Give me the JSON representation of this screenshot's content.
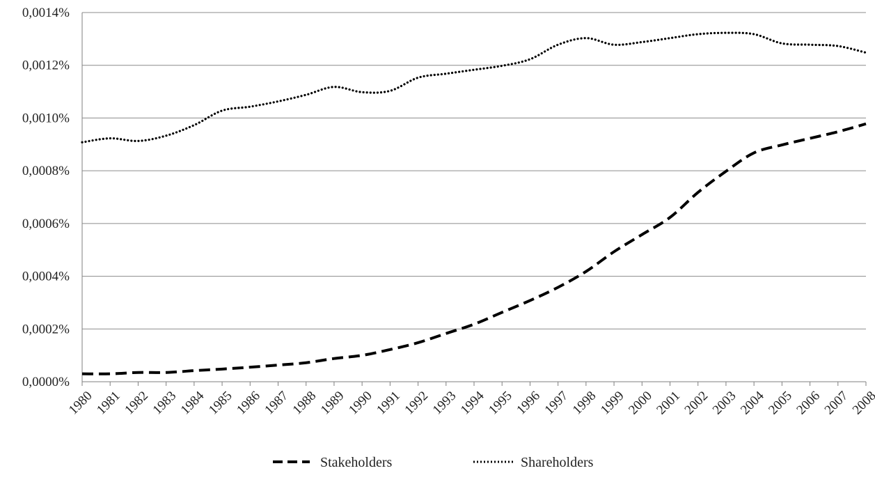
{
  "chart_data": {
    "type": "line",
    "title": "",
    "xlabel": "",
    "ylabel": "",
    "ylim": [
      0,
      0.0014
    ],
    "yticks": [
      0,
      0.0002,
      0.0004,
      0.0006,
      0.0008,
      0.001,
      0.0012,
      0.0014
    ],
    "ytick_labels": [
      "0,0000%",
      "0,0002%",
      "0,0004%",
      "0,0006%",
      "0,0008%",
      "0,0010%",
      "0,0012%",
      "0,0014%"
    ],
    "grid": "horizontal",
    "legend": "bottom-center",
    "categories": [
      "1980",
      "1981",
      "1982",
      "1983",
      "1984",
      "1985",
      "1986",
      "1987",
      "1988",
      "1989",
      "1990",
      "1991",
      "1992",
      "1993",
      "1994",
      "1995",
      "1996",
      "1997",
      "1998",
      "1999",
      "2000",
      "2001",
      "2002",
      "2003",
      "2004",
      "2005",
      "2006",
      "2007",
      "2008"
    ],
    "series": [
      {
        "name": "Stakeholders",
        "style": "dashed",
        "color": "#000000",
        "values": [
          3e-05,
          3e-05,
          3.5e-05,
          3.5e-05,
          4.2e-05,
          4.8e-05,
          5.5e-05,
          6.3e-05,
          7.2e-05,
          8.8e-05,
          0.0001,
          0.000122,
          0.000148,
          0.000183,
          0.000218,
          0.000263,
          0.000308,
          0.000358,
          0.000418,
          0.000493,
          0.000558,
          0.000623,
          0.000718,
          0.000798,
          0.000868,
          0.000898,
          0.000923,
          0.000948,
          0.000978
        ]
      },
      {
        "name": "Shareholders",
        "style": "dotted",
        "color": "#000000",
        "values": [
          0.000908,
          0.000923,
          0.000913,
          0.000933,
          0.000973,
          0.001028,
          0.001043,
          0.001063,
          0.001088,
          0.001118,
          0.001098,
          0.001103,
          0.001153,
          0.001168,
          0.001183,
          0.001198,
          0.001223,
          0.001278,
          0.001303,
          0.001278,
          0.001288,
          0.001303,
          0.001318,
          0.001323,
          0.001318,
          0.001283,
          0.001278,
          0.001273,
          0.001248
        ]
      }
    ]
  }
}
